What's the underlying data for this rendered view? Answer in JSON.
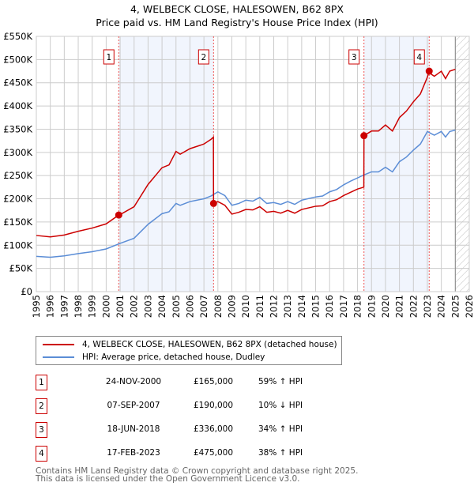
{
  "chart_data": {
    "type": "line",
    "title": "4, WELBECK CLOSE, HALESOWEN, B62 8PX",
    "subtitle": "Price paid vs. HM Land Registry's House Price Index (HPI)",
    "xlim": [
      1995,
      2026
    ],
    "ylim": [
      0,
      550000
    ],
    "x_ticks": [
      "1995",
      "1996",
      "1997",
      "1998",
      "1999",
      "2000",
      "2001",
      "2002",
      "2003",
      "2004",
      "2005",
      "2006",
      "2007",
      "2008",
      "2009",
      "2010",
      "2011",
      "2012",
      "2013",
      "2014",
      "2015",
      "2016",
      "2017",
      "2018",
      "2019",
      "2020",
      "2021",
      "2022",
      "2023",
      "2024",
      "2025",
      "2026"
    ],
    "y_ticks": [
      "£0",
      "£50K",
      "£100K",
      "£150K",
      "£200K",
      "£250K",
      "£300K",
      "£350K",
      "£400K",
      "£450K",
      "£500K",
      "£550K"
    ],
    "grid": true,
    "legend": "bottom",
    "series": [
      {
        "name": "4, WELBECK CLOSE, HALESOWEN, B62 8PX (detached house)",
        "color": "#cc0000",
        "points": [
          [
            1995,
            121
          ],
          [
            1996,
            118
          ],
          [
            1997,
            122
          ],
          [
            1998,
            130
          ],
          [
            1999,
            137
          ],
          [
            2000,
            146
          ],
          [
            2000.9,
            165
          ],
          [
            2001,
            166
          ],
          [
            2002,
            183
          ],
          [
            2003,
            231
          ],
          [
            2004,
            267
          ],
          [
            2004.5,
            273
          ],
          [
            2005,
            302
          ],
          [
            2005.3,
            296
          ],
          [
            2006,
            308
          ],
          [
            2007,
            318
          ],
          [
            2007.5,
            328
          ],
          [
            2007.68,
            333
          ],
          [
            2007.69,
            190
          ],
          [
            2008,
            194
          ],
          [
            2008.5,
            186
          ],
          [
            2009,
            167
          ],
          [
            2009.5,
            171
          ],
          [
            2010,
            177
          ],
          [
            2010.5,
            176
          ],
          [
            2011,
            183
          ],
          [
            2011.5,
            171
          ],
          [
            2012,
            173
          ],
          [
            2012.5,
            169
          ],
          [
            2013,
            175
          ],
          [
            2013.5,
            169
          ],
          [
            2014,
            177
          ],
          [
            2015,
            184
          ],
          [
            2015.5,
            185
          ],
          [
            2016,
            194
          ],
          [
            2016.5,
            198
          ],
          [
            2017,
            207
          ],
          [
            2017.5,
            214
          ],
          [
            2018,
            221
          ],
          [
            2018.45,
            225
          ],
          [
            2018.46,
            336
          ],
          [
            2019,
            346
          ],
          [
            2019.5,
            346
          ],
          [
            2020,
            359
          ],
          [
            2020.5,
            346
          ],
          [
            2021,
            375
          ],
          [
            2021.5,
            389
          ],
          [
            2022,
            409
          ],
          [
            2022.5,
            426
          ],
          [
            2023,
            462
          ],
          [
            2023.13,
            475
          ],
          [
            2023.3,
            468
          ],
          [
            2023.5,
            464
          ],
          [
            2024,
            475
          ],
          [
            2024.3,
            459
          ],
          [
            2024.6,
            475
          ],
          [
            2025,
            479
          ]
        ]
      },
      {
        "name": "HPI: Average price, detached house, Dudley",
        "color": "#5b8dd6",
        "points": [
          [
            1995,
            76
          ],
          [
            1996,
            74
          ],
          [
            1997,
            77
          ],
          [
            1998,
            82
          ],
          [
            1999,
            86
          ],
          [
            2000,
            92
          ],
          [
            2001,
            104
          ],
          [
            2002,
            115
          ],
          [
            2003,
            145
          ],
          [
            2004,
            168
          ],
          [
            2004.5,
            172
          ],
          [
            2005,
            190
          ],
          [
            2005.3,
            186
          ],
          [
            2006,
            194
          ],
          [
            2007,
            200
          ],
          [
            2007.5,
            206
          ],
          [
            2008,
            215
          ],
          [
            2008.5,
            207
          ],
          [
            2009,
            186
          ],
          [
            2009.5,
            190
          ],
          [
            2010,
            197
          ],
          [
            2010.5,
            195
          ],
          [
            2011,
            203
          ],
          [
            2011.5,
            190
          ],
          [
            2012,
            192
          ],
          [
            2012.5,
            188
          ],
          [
            2013,
            194
          ],
          [
            2013.5,
            188
          ],
          [
            2014,
            197
          ],
          [
            2015,
            204
          ],
          [
            2015.5,
            206
          ],
          [
            2016,
            215
          ],
          [
            2016.5,
            220
          ],
          [
            2017,
            230
          ],
          [
            2017.5,
            238
          ],
          [
            2018,
            245
          ],
          [
            2018.5,
            252
          ],
          [
            2019,
            258
          ],
          [
            2019.5,
            258
          ],
          [
            2020,
            268
          ],
          [
            2020.5,
            258
          ],
          [
            2021,
            280
          ],
          [
            2021.5,
            290
          ],
          [
            2022,
            305
          ],
          [
            2022.5,
            318
          ],
          [
            2023,
            345
          ],
          [
            2023.3,
            340
          ],
          [
            2023.5,
            337
          ],
          [
            2024,
            345
          ],
          [
            2024.3,
            333
          ],
          [
            2024.6,
            345
          ],
          [
            2025,
            348
          ]
        ]
      }
    ],
    "value_unit": "£K",
    "sales": [
      {
        "n": "1",
        "x": 2000.9,
        "y": 165
      },
      {
        "n": "2",
        "x": 2007.69,
        "y": 190
      },
      {
        "n": "3",
        "x": 2018.46,
        "y": 336
      },
      {
        "n": "4",
        "x": 2023.13,
        "y": 475
      }
    ],
    "shaded_ranges": [
      [
        2000.9,
        2007.69
      ],
      [
        2018.46,
        2023.13
      ]
    ],
    "forecast_from": 2025
  },
  "transactions": [
    {
      "n": "1",
      "date": "24-NOV-2000",
      "price": "£165,000",
      "hpi": "59% ↑ HPI"
    },
    {
      "n": "2",
      "date": "07-SEP-2007",
      "price": "£190,000",
      "hpi": "10% ↓ HPI"
    },
    {
      "n": "3",
      "date": "18-JUN-2018",
      "price": "£336,000",
      "hpi": "34% ↑ HPI"
    },
    {
      "n": "4",
      "date": "17-FEB-2023",
      "price": "£475,000",
      "hpi": "38% ↑ HPI"
    }
  ],
  "footer": {
    "line1": "Contains HM Land Registry data © Crown copyright and database right 2025.",
    "line2": "This data is licensed under the Open Government Licence v3.0."
  }
}
